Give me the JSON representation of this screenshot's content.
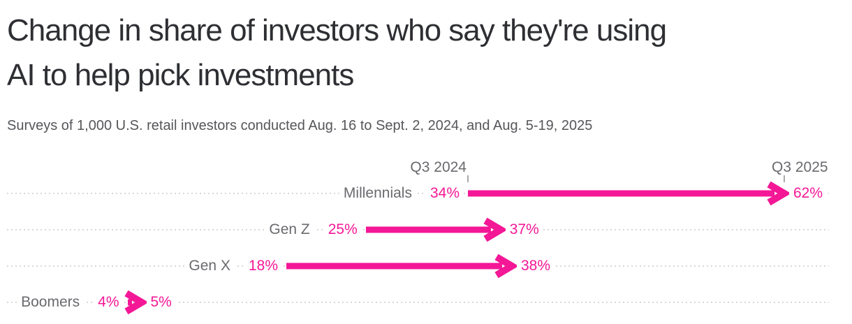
{
  "title": "Change in share of investors who say they're using\nAI to help pick investments",
  "subtitle": "Surveys of 1,000 U.S. retail investors conducted Aug. 16 to Sept. 2, 2024, and Aug. 5-19, 2025",
  "colors": {
    "accent": "#f41796",
    "title_text": "#2e2f33",
    "subtitle_text": "#55565a",
    "label_gray": "#696a6e",
    "dotted_line": "#d8d8d8",
    "tick": "#a9a9aa",
    "background": "#ffffff"
  },
  "chart_data": {
    "type": "arrow",
    "title": "Change in share of investors who say they're using AI to help pick investments",
    "subtitle": "Surveys of 1,000 U.S. retail investors conducted Aug. 16 to Sept. 2, 2024, and Aug. 5-19, 2025",
    "unit": "%",
    "columns": [
      "Q3 2024",
      "Q3 2025"
    ],
    "categories": [
      "Millennials",
      "Gen Z",
      "Gen X",
      "Boomers"
    ],
    "series": [
      {
        "name": "Q3 2024",
        "values": [
          34,
          25,
          18,
          4
        ]
      },
      {
        "name": "Q3 2025",
        "values": [
          62,
          37,
          38,
          5
        ]
      }
    ],
    "rows": [
      {
        "label": "Millennials",
        "start": 34,
        "end": 62,
        "start_label": "34%",
        "end_label": "62%"
      },
      {
        "label": "Gen Z",
        "start": 25,
        "end": 37,
        "start_label": "25%",
        "end_label": "37%"
      },
      {
        "label": "Gen X",
        "start": 18,
        "end": 38,
        "start_label": "18%",
        "end_label": "38%"
      },
      {
        "label": "Boomers",
        "start": 4,
        "end": 5,
        "start_label": "4%",
        "end_label": "5%"
      }
    ],
    "xlim": [
      0,
      66
    ],
    "grid": "dotted horizontal leader line per row",
    "legend": "none",
    "annotations": [
      "tick under Q3 2024 at start of first arrow",
      "tick under Q3 2025 at tip of first arrow"
    ]
  }
}
